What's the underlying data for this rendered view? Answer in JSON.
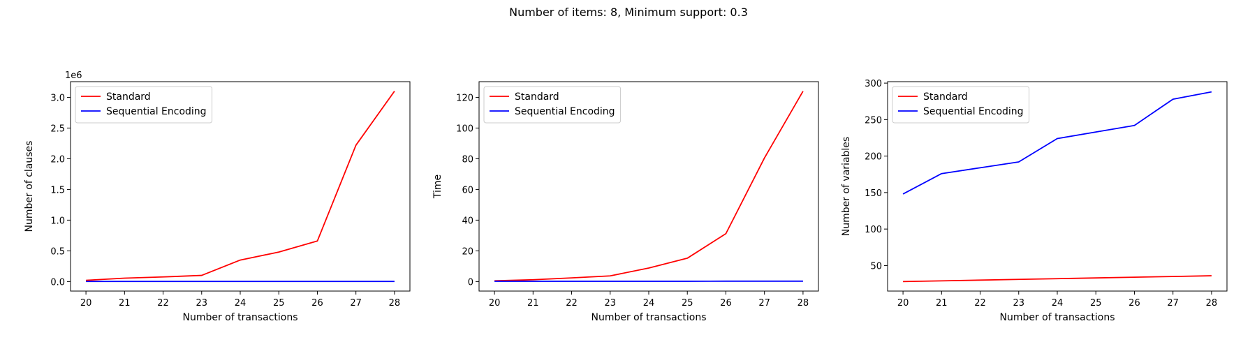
{
  "figure": {
    "suptitle": "Number of items: 8, Minimum support: 0.3"
  },
  "chart_data": [
    {
      "type": "line",
      "title": "",
      "xlabel": "Number of transactions",
      "ylabel": "Number of clauses",
      "x": [
        20,
        21,
        22,
        23,
        24,
        25,
        26,
        27,
        28
      ],
      "xlim": [
        19.6,
        28.4
      ],
      "ylim": [
        -0.155,
        3.255
      ],
      "yticks": [
        0.0,
        0.5,
        1.0,
        1.5,
        2.0,
        2.5,
        3.0
      ],
      "ytick_labels": [
        "0.0",
        "0.5",
        "1.0",
        "1.5",
        "2.0",
        "2.5",
        "3.0"
      ],
      "offset_text": "1e6",
      "legend_position": "upper-left",
      "series": [
        {
          "name": "Standard",
          "color": "#ff0000",
          "values": [
            0.02,
            0.055,
            0.075,
            0.1,
            0.35,
            0.48,
            0.66,
            2.22,
            3.1
          ]
        },
        {
          "name": "Sequential Encoding",
          "color": "#0000ff",
          "values": [
            0.002,
            0.002,
            0.002,
            0.002,
            0.002,
            0.002,
            0.002,
            0.002,
            0.002
          ]
        }
      ]
    },
    {
      "type": "line",
      "title": "",
      "xlabel": "Number of transactions",
      "ylabel": "Time",
      "x": [
        20,
        21,
        22,
        23,
        24,
        25,
        26,
        27,
        28
      ],
      "xlim": [
        19.6,
        28.4
      ],
      "ylim": [
        -6.2,
        130.2
      ],
      "yticks": [
        0,
        20,
        40,
        60,
        80,
        100,
        120
      ],
      "ytick_labels": [
        "0",
        "20",
        "40",
        "60",
        "80",
        "100",
        "120"
      ],
      "offset_text": "",
      "legend_position": "upper-left",
      "series": [
        {
          "name": "Standard",
          "color": "#ff0000",
          "values": [
            0.5,
            1.2,
            2.4,
            3.7,
            8.8,
            15.2,
            31.2,
            80.5,
            124.0
          ]
        },
        {
          "name": "Sequential Encoding",
          "color": "#0000ff",
          "values": [
            0.2,
            0.2,
            0.2,
            0.2,
            0.2,
            0.2,
            0.25,
            0.25,
            0.25
          ]
        }
      ]
    },
    {
      "type": "line",
      "title": "",
      "xlabel": "Number of transactions",
      "ylabel": "Number of variables",
      "x": [
        20,
        21,
        22,
        23,
        24,
        25,
        26,
        27,
        28
      ],
      "xlim": [
        19.6,
        28.4
      ],
      "ylim": [
        15,
        302
      ],
      "yticks": [
        50,
        100,
        150,
        200,
        250,
        300
      ],
      "ytick_labels": [
        "50",
        "100",
        "150",
        "200",
        "250",
        "300"
      ],
      "offset_text": "",
      "legend_position": "upper-left",
      "series": [
        {
          "name": "Standard",
          "color": "#ff0000",
          "values": [
            28,
            29,
            30,
            31,
            32,
            33,
            34,
            35,
            36
          ]
        },
        {
          "name": "Sequential Encoding",
          "color": "#0000ff",
          "values": [
            148,
            176,
            184,
            192,
            224,
            233,
            242,
            278,
            288
          ]
        }
      ]
    }
  ]
}
